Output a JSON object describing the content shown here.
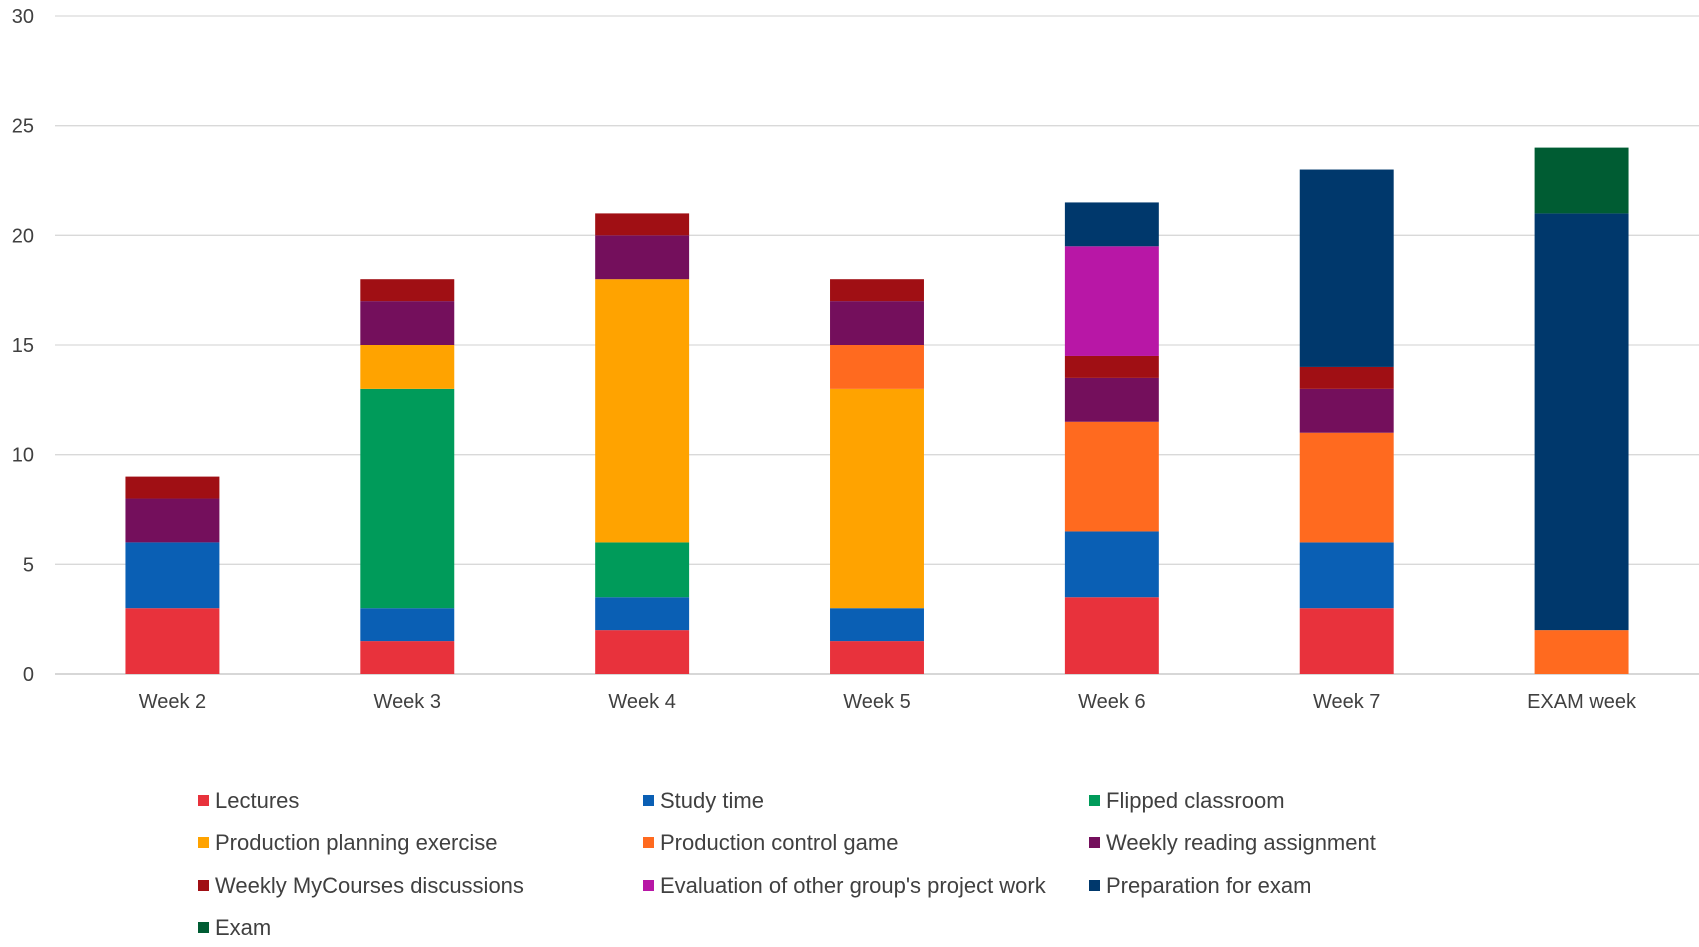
{
  "chart_data": {
    "type": "bar",
    "stacked": true,
    "title": "",
    "xlabel": "",
    "ylabel": "",
    "ylim": [
      0,
      30
    ],
    "yticks": [
      "0",
      "5",
      "10",
      "15",
      "20",
      "25",
      "30"
    ],
    "grid": true,
    "legend_position": "bottom",
    "categories": [
      "Week 2",
      "Week 3",
      "Week 4",
      "Week 5",
      "Week 6",
      "Week 7",
      "EXAM week"
    ],
    "series": [
      {
        "name": "Lectures",
        "color": "#E8323C",
        "values": [
          3,
          1.5,
          2,
          1.5,
          3.5,
          3,
          0
        ]
      },
      {
        "name": "Study time",
        "color": "#0A5FB4",
        "values": [
          3,
          1.5,
          1.5,
          1.5,
          3,
          3,
          0
        ]
      },
      {
        "name": "Flipped classroom",
        "color": "#009B5A",
        "values": [
          0,
          10,
          2.5,
          0,
          0,
          0,
          0
        ]
      },
      {
        "name": "Production planning exercise",
        "color": "#FFA300",
        "values": [
          0,
          2,
          12,
          10,
          0,
          0,
          0
        ]
      },
      {
        "name": "Production control game",
        "color": "#FF6A1F",
        "values": [
          0,
          0,
          0,
          2,
          5,
          5,
          2
        ]
      },
      {
        "name": "Weekly reading assignment",
        "color": "#740F5C",
        "values": [
          2,
          2,
          2,
          2,
          2,
          2,
          0
        ]
      },
      {
        "name": "Weekly MyCourses discussions",
        "color": "#A00F14",
        "values": [
          1,
          1,
          1,
          1,
          1,
          1,
          0
        ]
      },
      {
        "name": "Evaluation of other group's project work",
        "color": "#B817A6",
        "values": [
          0,
          0,
          0,
          0,
          5,
          0,
          0
        ]
      },
      {
        "name": "Preparation for exam",
        "color": "#00386C",
        "values": [
          0,
          0,
          0,
          0,
          2,
          9,
          19
        ]
      },
      {
        "name": "Exam",
        "color": "#005C33",
        "values": [
          0,
          0,
          0,
          0,
          0,
          0,
          3
        ]
      }
    ]
  }
}
